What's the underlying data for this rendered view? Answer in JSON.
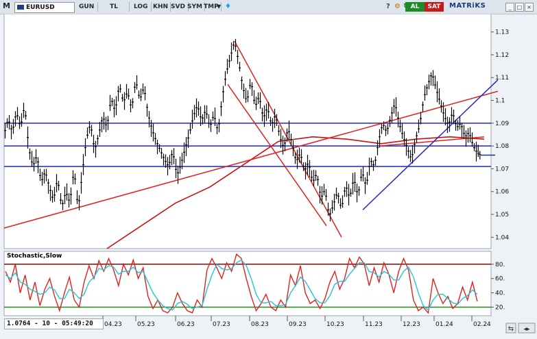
{
  "toolbar": {
    "m_label": "M",
    "symbol": "EURUSD",
    "buttons": [
      "GUN",
      "TL",
      "LOG",
      "KHN",
      "SVD",
      "SYM",
      "TMP"
    ],
    "al_label": "AL",
    "sat_label": "SAT",
    "brand": "MATRiKS"
  },
  "footer": {
    "readout": "1.0764 - 10 - 05:49:20"
  },
  "colors": {
    "candle": "#000000",
    "trend_red": "#e0201c",
    "ma_red": "#c81010",
    "hline_blue": "#1f26c4",
    "trend_blue": "#1f26c4",
    "stoch_k": "#e0201c",
    "stoch_d": "#22c4d8",
    "stoch_upper": "#9a0000",
    "stoch_lower": "#1a8a1a"
  },
  "chart_data": [
    {
      "type": "candlestick",
      "title": "",
      "ylim": [
        1.035,
        1.138
      ],
      "yticks": [
        1.04,
        1.05,
        1.06,
        1.07,
        1.08,
        1.09,
        1.1,
        1.11,
        1.12,
        1.13
      ],
      "xticks": [
        "04.23",
        "05.23",
        "06.23",
        "07.23",
        "08.23",
        "09.23",
        "10.23",
        "11.23",
        "12.23",
        "01.24",
        "02.24"
      ],
      "last_value": 1.0764,
      "horizontal_lines": [
        1.09,
        1.08,
        1.071
      ],
      "close_path": [
        [
          0,
          1.085
        ],
        [
          6,
          1.092
        ],
        [
          12,
          1.086
        ],
        [
          18,
          1.095
        ],
        [
          24,
          1.088
        ],
        [
          30,
          1.098
        ],
        [
          36,
          1.079
        ],
        [
          42,
          1.071
        ],
        [
          48,
          1.076
        ],
        [
          54,
          1.064
        ],
        [
          60,
          1.069
        ],
        [
          66,
          1.062
        ],
        [
          72,
          1.056
        ],
        [
          78,
          1.066
        ],
        [
          84,
          1.053
        ],
        [
          90,
          1.06
        ],
        [
          96,
          1.055
        ],
        [
          102,
          1.07
        ],
        [
          108,
          1.052
        ],
        [
          114,
          1.068
        ],
        [
          120,
          1.083
        ],
        [
          126,
          1.09
        ],
        [
          132,
          1.078
        ],
        [
          138,
          1.085
        ],
        [
          144,
          1.093
        ],
        [
          150,
          1.088
        ],
        [
          156,
          1.101
        ],
        [
          162,
          1.095
        ],
        [
          168,
          1.107
        ],
        [
          174,
          1.099
        ],
        [
          180,
          1.104
        ],
        [
          186,
          1.096
        ],
        [
          192,
          1.109
        ],
        [
          198,
          1.1
        ],
        [
          204,
          1.106
        ],
        [
          210,
          1.094
        ],
        [
          216,
          1.087
        ],
        [
          222,
          1.082
        ],
        [
          228,
          1.078
        ],
        [
          234,
          1.074
        ],
        [
          240,
          1.071
        ],
        [
          246,
          1.078
        ],
        [
          252,
          1.067
        ],
        [
          258,
          1.072
        ],
        [
          264,
          1.079
        ],
        [
          270,
          1.085
        ],
        [
          276,
          1.093
        ],
        [
          282,
          1.098
        ],
        [
          288,
          1.091
        ],
        [
          294,
          1.096
        ],
        [
          300,
          1.088
        ],
        [
          306,
          1.094
        ],
        [
          312,
          1.086
        ],
        [
          318,
          1.101
        ],
        [
          324,
          1.112
        ],
        [
          330,
          1.119
        ],
        [
          336,
          1.126
        ],
        [
          342,
          1.117
        ],
        [
          348,
          1.106
        ],
        [
          354,
          1.099
        ],
        [
          360,
          1.109
        ],
        [
          366,
          1.097
        ],
        [
          372,
          1.102
        ],
        [
          378,
          1.092
        ],
        [
          384,
          1.097
        ],
        [
          390,
          1.089
        ],
        [
          396,
          1.094
        ],
        [
          402,
          1.084
        ],
        [
          408,
          1.079
        ],
        [
          414,
          1.088
        ],
        [
          420,
          1.081
        ],
        [
          426,
          1.073
        ],
        [
          432,
          1.077
        ],
        [
          438,
          1.069
        ],
        [
          444,
          1.073
        ],
        [
          450,
          1.064
        ],
        [
          456,
          1.068
        ],
        [
          462,
          1.057
        ],
        [
          468,
          1.061
        ],
        [
          474,
          1.049
        ],
        [
          480,
          1.054
        ],
        [
          486,
          1.06
        ],
        [
          492,
          1.052
        ],
        [
          498,
          1.063
        ],
        [
          504,
          1.057
        ],
        [
          510,
          1.066
        ],
        [
          516,
          1.058
        ],
        [
          522,
          1.069
        ],
        [
          528,
          1.062
        ],
        [
          534,
          1.074
        ],
        [
          540,
          1.071
        ],
        [
          546,
          1.082
        ],
        [
          552,
          1.09
        ],
        [
          558,
          1.086
        ],
        [
          564,
          1.093
        ],
        [
          570,
          1.099
        ],
        [
          576,
          1.09
        ],
        [
          582,
          1.084
        ],
        [
          588,
          1.079
        ],
        [
          594,
          1.074
        ],
        [
          600,
          1.083
        ],
        [
          606,
          1.089
        ],
        [
          612,
          1.101
        ],
        [
          618,
          1.107
        ],
        [
          624,
          1.112
        ],
        [
          630,
          1.105
        ],
        [
          636,
          1.099
        ],
        [
          642,
          1.093
        ],
        [
          648,
          1.089
        ],
        [
          654,
          1.095
        ],
        [
          660,
          1.088
        ],
        [
          666,
          1.09
        ],
        [
          672,
          1.084
        ],
        [
          678,
          1.086
        ],
        [
          684,
          1.08
        ],
        [
          690,
          1.077
        ],
        [
          695,
          1.076
        ]
      ],
      "trendlines": [
        {
          "color": "red",
          "from": [
            0,
            1.044
          ],
          "to": [
            720,
            1.104
          ]
        },
        {
          "color": "red",
          "from": [
            336,
            1.126
          ],
          "to": [
            492,
            1.04
          ]
        },
        {
          "color": "red",
          "from": [
            326,
            1.107
          ],
          "to": [
            470,
            1.045
          ]
        },
        {
          "color": "red",
          "from": [
            548,
            1.08
          ],
          "to": [
            700,
            1.084
          ]
        },
        {
          "color": "blue",
          "from": [
            523,
            1.052
          ],
          "to": [
            720,
            1.109
          ]
        },
        {
          "color": "blue",
          "from": [
            695,
            1.076
          ],
          "to": [
            716,
            1.076
          ]
        }
      ],
      "moving_average": [
        [
          150,
          1.035
        ],
        [
          200,
          1.045
        ],
        [
          250,
          1.055
        ],
        [
          300,
          1.062
        ],
        [
          350,
          1.072
        ],
        [
          400,
          1.082
        ],
        [
          450,
          1.084
        ],
        [
          500,
          1.083
        ],
        [
          550,
          1.081
        ],
        [
          600,
          1.083
        ],
        [
          650,
          1.084
        ],
        [
          700,
          1.083
        ]
      ]
    },
    {
      "type": "line",
      "title": "Stochastic,Slow",
      "ylim": [
        8,
        98
      ],
      "yticks": [
        20,
        40,
        60,
        80
      ],
      "upper_level": 80,
      "lower_level": 20,
      "series": [
        {
          "name": "",
          "values": [
            70,
            55,
            80,
            40,
            65,
            30,
            55,
            22,
            45,
            60,
            35,
            15,
            40,
            62,
            30,
            20,
            55,
            78,
            60,
            85,
            70,
            88,
            72,
            50,
            80,
            65,
            86,
            60,
            75,
            35,
            18,
            30,
            15,
            12,
            20,
            40,
            25,
            15,
            12,
            30,
            20,
            72,
            88,
            75,
            60,
            82,
            70,
            94,
            88,
            60,
            35,
            15,
            25,
            38,
            20,
            15,
            30,
            20,
            65,
            50,
            78,
            40,
            25,
            30,
            18,
            32,
            55,
            70,
            45,
            60,
            88,
            75,
            90,
            80,
            50,
            75,
            55,
            82,
            66,
            40,
            70,
            88,
            72,
            30,
            15,
            20,
            12,
            60,
            40,
            25,
            35,
            18,
            25,
            48,
            30,
            55,
            28
          ]
        },
        {
          "name": "",
          "values": [
            65,
            60,
            68,
            55,
            52,
            45,
            42,
            38,
            40,
            48,
            44,
            32,
            32,
            45,
            40,
            32,
            38,
            55,
            62,
            74,
            72,
            78,
            76,
            66,
            70,
            70,
            76,
            68,
            70,
            55,
            40,
            30,
            22,
            18,
            16,
            25,
            28,
            24,
            18,
            20,
            22,
            45,
            65,
            80,
            74,
            72,
            74,
            82,
            86,
            78,
            60,
            38,
            26,
            26,
            28,
            22,
            22,
            24,
            40,
            50,
            62,
            56,
            44,
            32,
            26,
            26,
            36,
            52,
            56,
            56,
            66,
            74,
            82,
            82,
            70,
            68,
            62,
            70,
            66,
            58,
            58,
            70,
            76,
            62,
            40,
            22,
            16,
            30,
            38,
            38,
            32,
            26,
            24,
            32,
            36,
            44,
            38
          ]
        }
      ]
    }
  ]
}
